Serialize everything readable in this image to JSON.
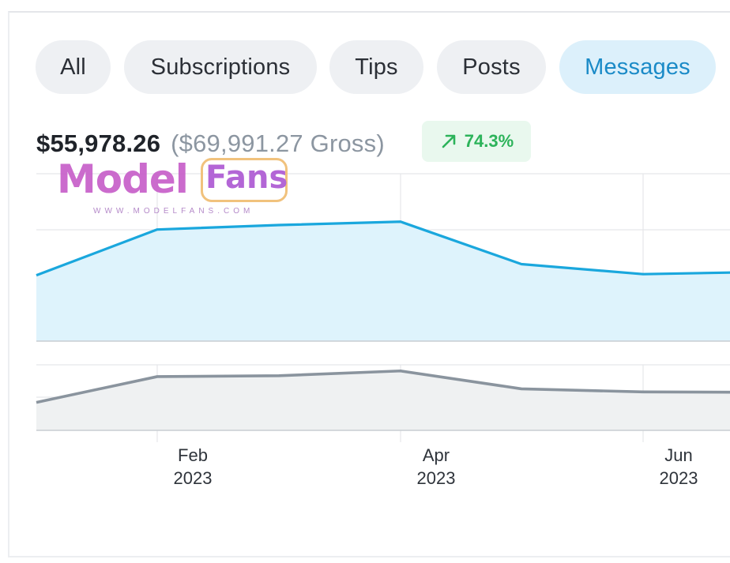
{
  "tabs": [
    {
      "label": "All",
      "active": false
    },
    {
      "label": "Subscriptions",
      "active": false
    },
    {
      "label": "Tips",
      "active": false
    },
    {
      "label": "Posts",
      "active": false
    },
    {
      "label": "Messages",
      "active": true
    }
  ],
  "summary": {
    "net": "$55,978.26",
    "gross": "($69,991.27 Gross)",
    "change": "74.3%",
    "change_icon": "arrow-up-right-icon"
  },
  "watermark": {
    "brand_first": "Model",
    "brand_second": "Fans",
    "url": "WWW.MODELFANS.COM"
  },
  "colors": {
    "accent": "#1a8ac7",
    "active_tab_bg": "#dcf0fb",
    "line_primary": "#1aa7dd",
    "fill_primary": "#def3fc",
    "line_secondary": "#8a949e",
    "fill_secondary": "#eff1f2",
    "positive": "#2cb35a"
  },
  "chart_data": {
    "type": "area",
    "x_ticks": [
      {
        "month": "Feb",
        "year": "2023"
      },
      {
        "month": "Apr",
        "year": "2023"
      },
      {
        "month": "Jun",
        "year": "2023"
      }
    ],
    "x": [
      "2023-01-01",
      "2023-02-01",
      "2023-03-01",
      "2023-04-01",
      "2023-05-01",
      "2023-06-01",
      "2023-07-01"
    ],
    "series": [
      {
        "values": [
          59,
          100,
          104,
          107,
          69,
          60,
          62
        ]
      },
      {
        "values": [
          64,
          123,
          125,
          136,
          95,
          88,
          87
        ]
      }
    ],
    "grid": true
  }
}
